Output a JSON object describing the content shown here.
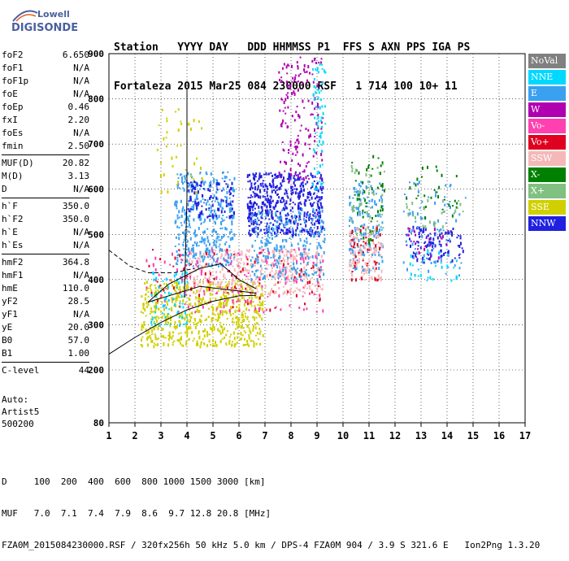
{
  "logo": {
    "line1": "Lowell",
    "line2": "DIGISONDE"
  },
  "header": {
    "line1": "Station   YYYY DAY   DDD HHMMSS P1  FFS S AXN PPS IGA PS",
    "line2": "Fortaleza 2015 Mar25 084 230000 RSF   1 714 100 10+ 11"
  },
  "params": [
    {
      "label": "foF2",
      "value": "6.650"
    },
    {
      "label": "foF1",
      "value": "N/A"
    },
    {
      "label": "foF1p",
      "value": "N/A"
    },
    {
      "label": "foE",
      "value": "N/A"
    },
    {
      "label": "foEp",
      "value": "0.46"
    },
    {
      "label": "fxI",
      "value": "2.20"
    },
    {
      "label": "foEs",
      "value": "N/A"
    },
    {
      "label": "fmin",
      "value": "2.50"
    },
    {
      "sep": true
    },
    {
      "label": "MUF(D)",
      "value": "20.82"
    },
    {
      "label": "M(D)",
      "value": "3.13"
    },
    {
      "label": "D",
      "value": "N/A"
    },
    {
      "sep": true
    },
    {
      "label": "h`F",
      "value": "350.0"
    },
    {
      "label": "h`F2",
      "value": "350.0"
    },
    {
      "label": "h`E",
      "value": "N/A"
    },
    {
      "label": "h`Es",
      "value": "N/A"
    },
    {
      "sep": true
    },
    {
      "label": "hmF2",
      "value": "364.8"
    },
    {
      "label": "hmF1",
      "value": "N/A"
    },
    {
      "label": "hmE",
      "value": "110.0"
    },
    {
      "label": "yF2",
      "value": "28.5"
    },
    {
      "label": "yF1",
      "value": "N/A"
    },
    {
      "label": "yE",
      "value": "20.0"
    },
    {
      "label": "B0",
      "value": "57.0"
    },
    {
      "label": "B1",
      "value": "1.00"
    },
    {
      "sep": true
    },
    {
      "label": "C-level",
      "value": "44"
    }
  ],
  "auto": {
    "line1": "Auto:",
    "line2": "Artist5",
    "line3": "500200"
  },
  "bottom": {
    "line1": "D     100  200  400  600  800 1000 1500 3000 [km]",
    "line2": "MUF   7.0  7.1  7.4  7.9  8.6  9.7 12.8 20.8 [MHz]",
    "line3": "FZA0M_2015084230000.RSF / 320fx256h 50 kHz 5.0 km / DPS-4 FZA0M 904 / 3.9 S 321.6 E   Ion2Png 1.3.20"
  },
  "legend": [
    {
      "label": "NoVal",
      "color": "#808080"
    },
    {
      "label": "NNE",
      "color": "#00d8ff"
    },
    {
      "label": "E",
      "color": "#3aa0f0"
    },
    {
      "label": "W",
      "color": "#b000b0"
    },
    {
      "label": "Vo-",
      "color": "#ff40b0"
    },
    {
      "label": "Vo+",
      "color": "#e00020"
    },
    {
      "label": "SSW",
      "color": "#f4b8b8"
    },
    {
      "label": "X-",
      "color": "#008000"
    },
    {
      "label": "X+",
      "color": "#80c080"
    },
    {
      "label": "SSE",
      "color": "#d0d000"
    },
    {
      "label": "NNW",
      "color": "#2020e0"
    }
  ],
  "chart_data": {
    "type": "scatter",
    "xlabel": "",
    "ylabel": "",
    "xlim": [
      1,
      17
    ],
    "ylim": [
      80,
      900
    ],
    "x_ticks": [
      "1",
      "2",
      "3",
      "4",
      "5",
      "6",
      "7",
      "8",
      "9",
      "10",
      "11",
      "12",
      "13",
      "14",
      "15",
      "16",
      "17"
    ],
    "y_ticks": [
      "80",
      "200",
      "300",
      "400",
      "500",
      "600",
      "700",
      "800",
      "900"
    ],
    "grid": true,
    "clusters": [
      {
        "name": "SSE",
        "x": [
          2.2,
          6.9
        ],
        "y": [
          255,
          400
        ],
        "n": 650
      },
      {
        "name": "SSW",
        "x": [
          4.0,
          9.2
        ],
        "y": [
          370,
          470
        ],
        "n": 380
      },
      {
        "name": "E",
        "x": [
          3.5,
          5.8
        ],
        "y": [
          430,
          640
        ],
        "n": 380
      },
      {
        "name": "NNW",
        "x": [
          6.3,
          9.2
        ],
        "y": [
          500,
          640
        ],
        "n": 520
      },
      {
        "name": "NNW",
        "x": [
          4.0,
          5.8
        ],
        "y": [
          540,
          620
        ],
        "n": 90
      },
      {
        "name": "E",
        "x": [
          6.4,
          9.3
        ],
        "y": [
          400,
          560
        ],
        "n": 260
      },
      {
        "name": "W",
        "x": [
          7.5,
          9.2
        ],
        "y": [
          620,
          900
        ],
        "n": 160
      },
      {
        "name": "NNE",
        "x": [
          8.8,
          9.3
        ],
        "y": [
          600,
          880
        ],
        "n": 60
      },
      {
        "name": "Vo-",
        "x": [
          2.4,
          9.2
        ],
        "y": [
          330,
          470
        ],
        "n": 150
      },
      {
        "name": "Vo+",
        "x": [
          2.5,
          9.2
        ],
        "y": [
          330,
          470
        ],
        "n": 80
      },
      {
        "name": "NNE",
        "x": [
          2.6,
          4.0
        ],
        "y": [
          300,
          420
        ],
        "n": 70
      },
      {
        "name": "E",
        "x": [
          10.2,
          11.5
        ],
        "y": [
          420,
          620
        ],
        "n": 160
      },
      {
        "name": "SSW",
        "x": [
          10.2,
          11.5
        ],
        "y": [
          400,
          520
        ],
        "n": 120
      },
      {
        "name": "X-",
        "x": [
          10.3,
          11.6
        ],
        "y": [
          480,
          680
        ],
        "n": 50
      },
      {
        "name": "X+",
        "x": [
          10.3,
          11.6
        ],
        "y": [
          500,
          660
        ],
        "n": 40
      },
      {
        "name": "Vo+",
        "x": [
          10.2,
          11.4
        ],
        "y": [
          400,
          520
        ],
        "n": 40
      },
      {
        "name": "NNW",
        "x": [
          12.4,
          14.6
        ],
        "y": [
          440,
          520
        ],
        "n": 100
      },
      {
        "name": "E",
        "x": [
          12.3,
          14.7
        ],
        "y": [
          410,
          620
        ],
        "n": 80
      },
      {
        "name": "NNE",
        "x": [
          12.5,
          14.5
        ],
        "y": [
          400,
          470
        ],
        "n": 30
      },
      {
        "name": "X-",
        "x": [
          12.4,
          14.4
        ],
        "y": [
          540,
          660
        ],
        "n": 30
      },
      {
        "name": "X+",
        "x": [
          12.4,
          14.6
        ],
        "y": [
          520,
          580
        ],
        "n": 25
      },
      {
        "name": "SSE",
        "x": [
          2.6,
          4.6
        ],
        "y": [
          590,
          780
        ],
        "n": 40
      },
      {
        "name": "W",
        "x": [
          12.3,
          14.2
        ],
        "y": [
          450,
          520
        ],
        "n": 25
      }
    ],
    "trace_lines": [
      {
        "name": "profile",
        "points": [
          [
            1,
            235
          ],
          [
            2,
            272
          ],
          [
            3,
            305
          ],
          [
            4,
            333
          ],
          [
            5,
            352
          ],
          [
            6,
            364
          ],
          [
            6.65,
            365
          ]
        ]
      },
      {
        "name": "o-trace",
        "points": [
          [
            2.5,
            350
          ],
          [
            3.3,
            390
          ],
          [
            4.5,
            425
          ],
          [
            5.3,
            435
          ],
          [
            6.0,
            400
          ],
          [
            6.65,
            380
          ]
        ]
      },
      {
        "name": "o-trace-low",
        "points": [
          [
            2.5,
            350
          ],
          [
            4.5,
            385
          ],
          [
            6.65,
            370
          ]
        ]
      },
      {
        "name": "spike",
        "points": [
          [
            3.9,
            360
          ],
          [
            3.95,
            470
          ],
          [
            4.0,
            580
          ],
          [
            4.0,
            820
          ]
        ]
      }
    ],
    "dashed_lines": [
      {
        "name": "extrapolation",
        "points": [
          [
            1,
            465
          ],
          [
            1.8,
            430
          ],
          [
            2.5,
            415
          ],
          [
            3.5,
            415
          ],
          [
            4.3,
            425
          ]
        ]
      }
    ]
  }
}
